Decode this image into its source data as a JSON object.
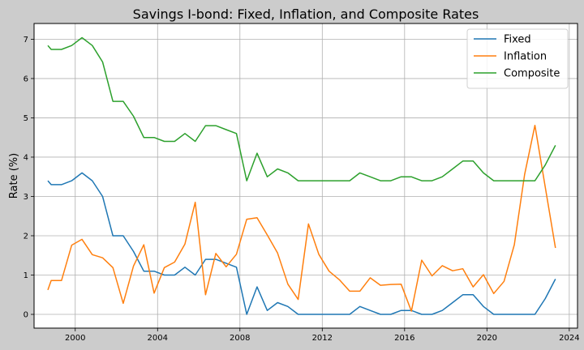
{
  "chart_data": {
    "type": "line",
    "title": "Savings I-bond: Fixed, Inflation, and Composite Rates",
    "xlabel": "",
    "ylabel": "Rate (%)",
    "xlim": [
      1998.0,
      2024.4
    ],
    "ylim": [
      -0.35,
      7.4
    ],
    "grid": true,
    "legend_position": "top-right",
    "x_ticks": [
      2000,
      2004,
      2008,
      2012,
      2016,
      2020,
      2024
    ],
    "x_tick_labels": [
      "2000",
      "2004",
      "2008",
      "2012",
      "2016",
      "2020",
      "2024"
    ],
    "y_ticks": [
      0,
      1,
      2,
      3,
      4,
      5,
      6,
      7
    ],
    "y_tick_labels": [
      "0",
      "1",
      "2",
      "3",
      "4",
      "5",
      "6",
      "7"
    ],
    "x": [
      1998.67,
      1998.83,
      1999.33,
      1999.83,
      2000.33,
      2000.83,
      2001.33,
      2001.83,
      2002.33,
      2002.83,
      2003.33,
      2003.83,
      2004.33,
      2004.83,
      2005.33,
      2005.83,
      2006.33,
      2006.83,
      2007.33,
      2007.83,
      2008.33,
      2008.83,
      2009.33,
      2009.83,
      2010.33,
      2010.83,
      2011.33,
      2011.83,
      2012.33,
      2012.83,
      2013.33,
      2013.83,
      2014.33,
      2014.83,
      2015.33,
      2015.83,
      2016.33,
      2016.83,
      2017.33,
      2017.83,
      2018.33,
      2018.83,
      2019.33,
      2019.83,
      2020.33,
      2020.83,
      2021.33,
      2021.83,
      2022.33,
      2022.83,
      2023.33
    ],
    "series": [
      {
        "name": "Fixed",
        "color": "#1f77b4",
        "values": [
          3.4,
          3.3,
          3.3,
          3.4,
          3.6,
          3.4,
          3.0,
          2.0,
          2.0,
          1.6,
          1.1,
          1.1,
          1.0,
          1.0,
          1.2,
          1.0,
          1.4,
          1.4,
          1.3,
          1.2,
          0.0,
          0.7,
          0.1,
          0.3,
          0.2,
          0.0,
          0.0,
          0.0,
          0.0,
          0.0,
          0.0,
          0.2,
          0.1,
          0.0,
          0.0,
          0.1,
          0.1,
          0.0,
          0.0,
          0.1,
          0.3,
          0.5,
          0.5,
          0.2,
          0.0,
          0.0,
          0.0,
          0.0,
          0.0,
          0.4,
          0.9
        ]
      },
      {
        "name": "Inflation",
        "color": "#ff7f0e",
        "values": [
          0.62,
          0.86,
          0.86,
          1.76,
          1.91,
          1.52,
          1.44,
          1.19,
          0.28,
          1.23,
          1.77,
          0.54,
          1.19,
          1.33,
          1.79,
          2.85,
          0.5,
          1.55,
          1.21,
          1.53,
          2.42,
          2.46,
          2.02,
          1.56,
          0.77,
          0.38,
          2.3,
          1.53,
          1.1,
          0.88,
          0.59,
          0.59,
          0.93,
          0.74,
          0.76,
          0.77,
          0.08,
          1.38,
          0.98,
          1.24,
          1.11,
          1.16,
          0.7,
          1.01,
          0.53,
          0.84,
          1.77,
          3.56,
          4.81,
          3.24,
          1.69
        ]
      },
      {
        "name": "Composite",
        "color": "#2ca02c",
        "values": [
          6.84,
          6.74,
          6.74,
          6.84,
          7.04,
          6.84,
          6.42,
          5.42,
          5.42,
          5.04,
          4.5,
          4.5,
          4.4,
          4.4,
          4.6,
          4.4,
          4.8,
          4.8,
          4.7,
          4.6,
          3.4,
          4.1,
          3.5,
          3.7,
          3.6,
          3.4,
          3.4,
          3.4,
          3.4,
          3.4,
          3.4,
          3.6,
          3.5,
          3.4,
          3.4,
          3.5,
          3.5,
          3.4,
          3.4,
          3.5,
          3.7,
          3.9,
          3.9,
          3.6,
          3.4,
          3.4,
          3.4,
          3.4,
          3.4,
          3.8,
          4.3
        ]
      }
    ]
  }
}
